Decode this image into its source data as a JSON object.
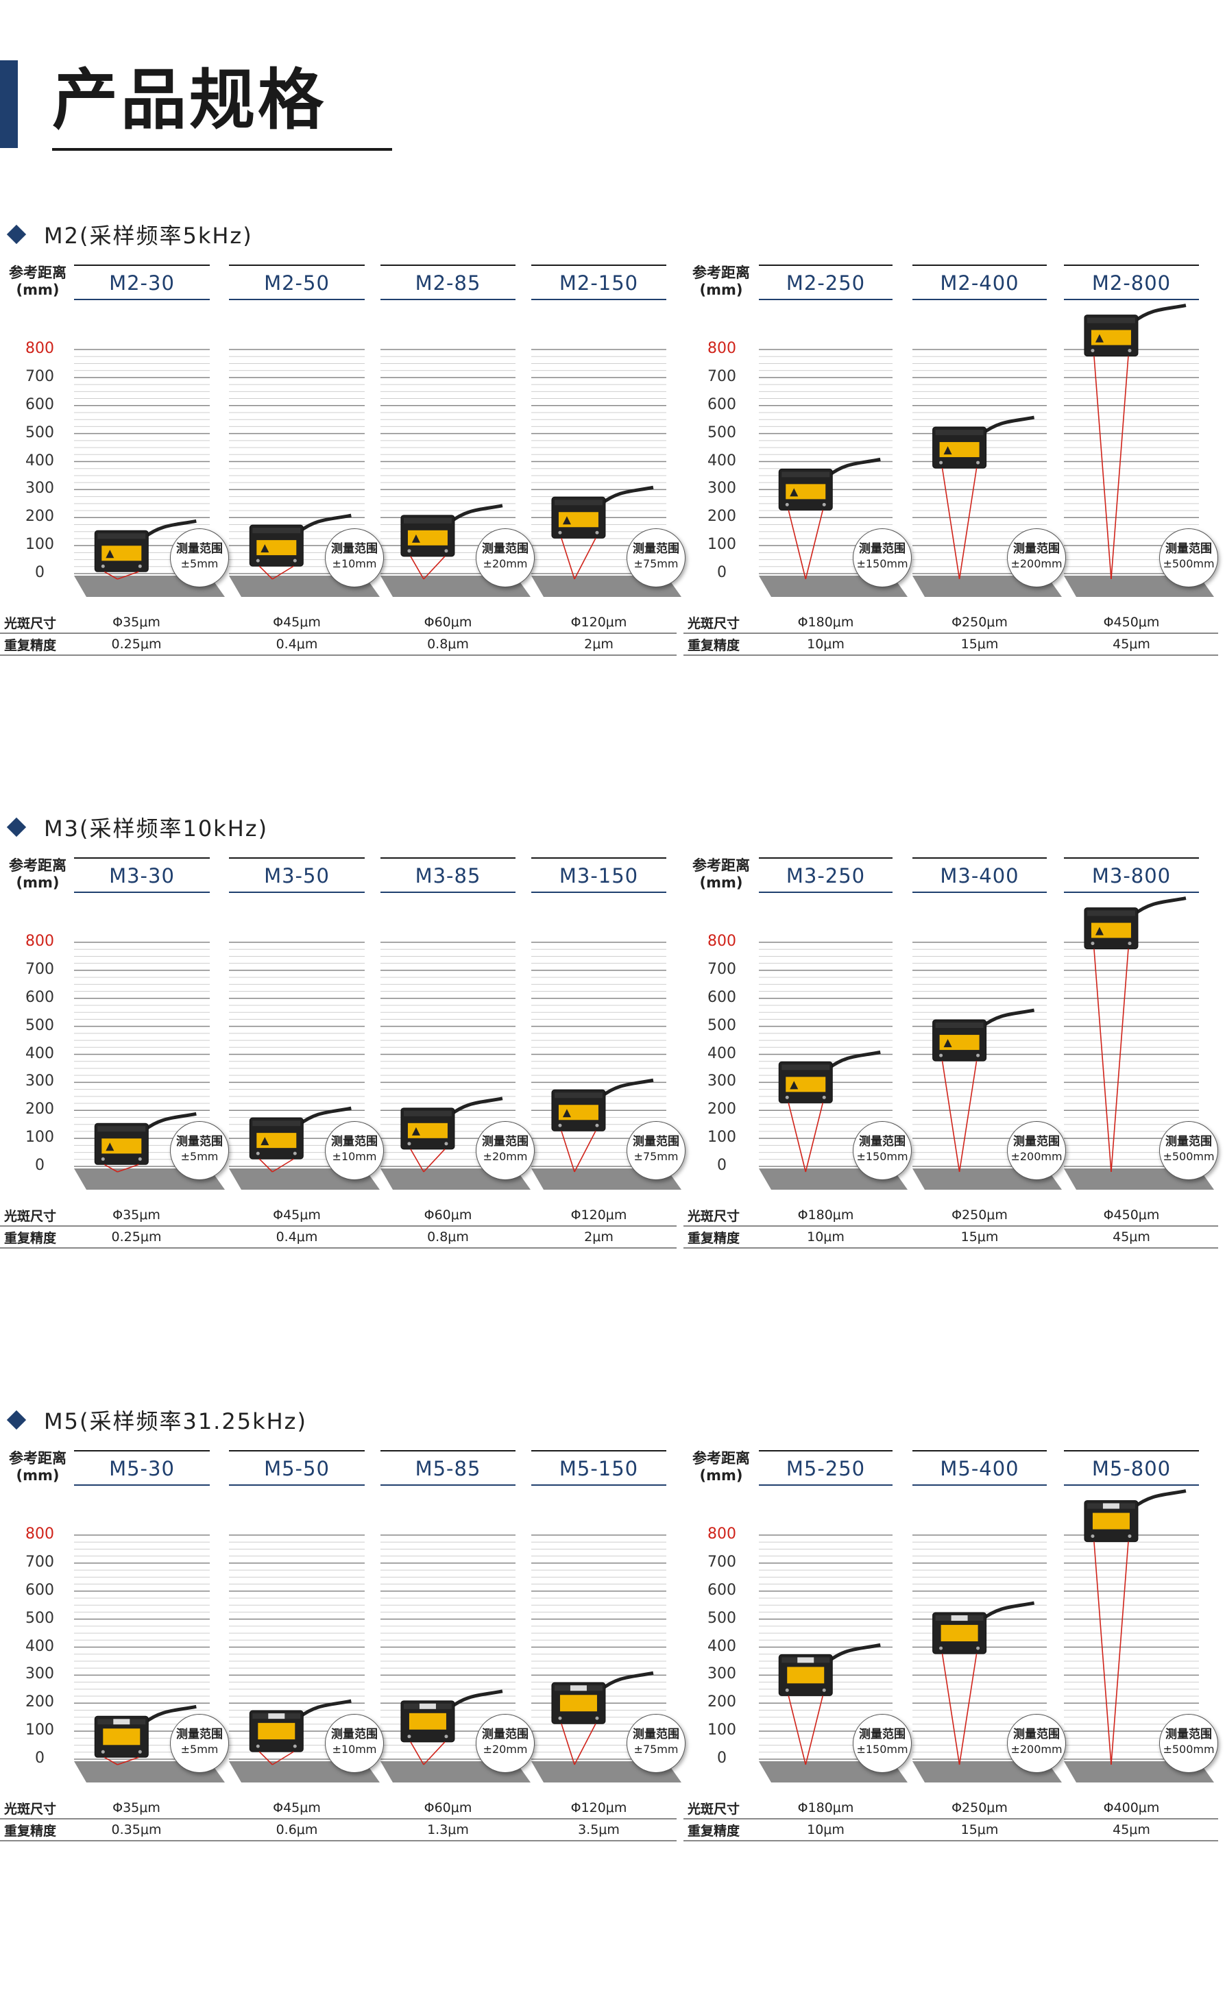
{
  "page": {
    "title": "产品规格"
  },
  "labels": {
    "ref_distance": "参考距离",
    "ref_unit": "(mm)",
    "spot_size": "光斑尺寸",
    "repeatability": "重复精度",
    "range_label": "测量范围"
  },
  "axis_ticks": [
    "800",
    "700",
    "600",
    "500",
    "400",
    "300",
    "200",
    "100",
    "0"
  ],
  "colors": {
    "accent": "#1f3f6e",
    "laser": "#d0231a",
    "axis_highlight": "#d0231a"
  },
  "sections": [
    {
      "title": "M2(采样频率5kHz)",
      "sensor_style": "black-label",
      "left": [
        {
          "model": "M2-30",
          "ref": 80,
          "range": "±5mm",
          "spot": "Φ35μm",
          "repeat": "0.25μm"
        },
        {
          "model": "M2-50",
          "ref": 100,
          "range": "±10mm",
          "spot": "Φ45μm",
          "repeat": "0.4μm"
        },
        {
          "model": "M2-85",
          "ref": 135,
          "range": "±20mm",
          "spot": "Φ60μm",
          "repeat": "0.8μm"
        },
        {
          "model": "M2-150",
          "ref": 200,
          "range": "±75mm",
          "spot": "Φ120μm",
          "repeat": "2μm"
        }
      ],
      "right": [
        {
          "model": "M2-250",
          "ref": 300,
          "range": "±150mm",
          "spot": "Φ180μm",
          "repeat": "10μm"
        },
        {
          "model": "M2-400",
          "ref": 450,
          "range": "±200mm",
          "spot": "Φ250μm",
          "repeat": "15μm"
        },
        {
          "model": "M2-800",
          "ref": 850,
          "range": "±500mm",
          "spot": "Φ450μm",
          "repeat": "45μm"
        }
      ]
    },
    {
      "title": "M3(采样频率10kHz)",
      "sensor_style": "black-label",
      "left": [
        {
          "model": "M3-30",
          "ref": 80,
          "range": "±5mm",
          "spot": "Φ35μm",
          "repeat": "0.25μm"
        },
        {
          "model": "M3-50",
          "ref": 100,
          "range": "±10mm",
          "spot": "Φ45μm",
          "repeat": "0.4μm"
        },
        {
          "model": "M3-85",
          "ref": 135,
          "range": "±20mm",
          "spot": "Φ60μm",
          "repeat": "0.8μm"
        },
        {
          "model": "M3-150",
          "ref": 200,
          "range": "±75mm",
          "spot": "Φ120μm",
          "repeat": "2μm"
        }
      ],
      "right": [
        {
          "model": "M3-250",
          "ref": 300,
          "range": "±150mm",
          "spot": "Φ180μm",
          "repeat": "10μm"
        },
        {
          "model": "M3-400",
          "ref": 450,
          "range": "±200mm",
          "spot": "Φ250μm",
          "repeat": "15μm"
        },
        {
          "model": "M3-800",
          "ref": 850,
          "range": "±500mm",
          "spot": "Φ450μm",
          "repeat": "45μm"
        }
      ]
    },
    {
      "title": "M5(采样频率31.25kHz)",
      "sensor_style": "display",
      "left": [
        {
          "model": "M5-30",
          "ref": 80,
          "range": "±5mm",
          "spot": "Φ35μm",
          "repeat": "0.35μm"
        },
        {
          "model": "M5-50",
          "ref": 100,
          "range": "±10mm",
          "spot": "Φ45μm",
          "repeat": "0.6μm"
        },
        {
          "model": "M5-85",
          "ref": 135,
          "range": "±20mm",
          "spot": "Φ60μm",
          "repeat": "1.3μm"
        },
        {
          "model": "M5-150",
          "ref": 200,
          "range": "±75mm",
          "spot": "Φ120μm",
          "repeat": "3.5μm"
        }
      ],
      "right": [
        {
          "model": "M5-250",
          "ref": 300,
          "range": "±150mm",
          "spot": "Φ180μm",
          "repeat": "10μm"
        },
        {
          "model": "M5-400",
          "ref": 450,
          "range": "±200mm",
          "spot": "Φ250μm",
          "repeat": "15μm"
        },
        {
          "model": "M5-800",
          "ref": 850,
          "range": "±500mm",
          "spot": "Φ400μm",
          "repeat": "45μm"
        }
      ]
    }
  ]
}
